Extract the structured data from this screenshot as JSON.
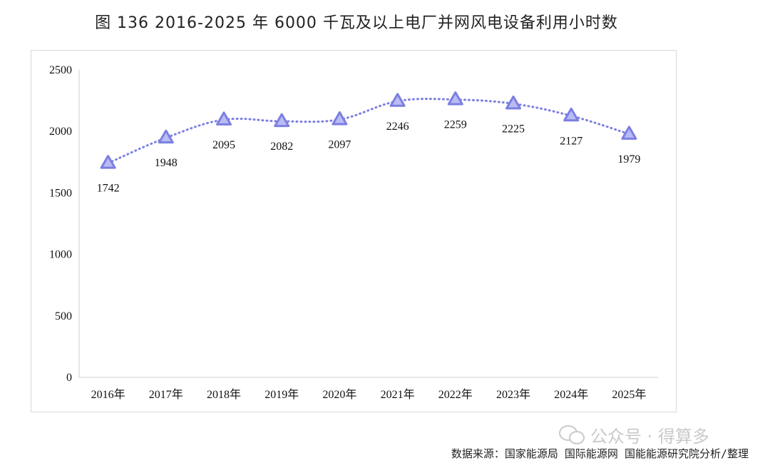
{
  "title": "图 136 2016-2025 年 6000 千瓦及以上电厂并网风电设备利用小时数",
  "source": "数据来源：国家能源局 国际能源网 国能能源研究院分析/整理",
  "watermark": {
    "text": "公众号 · 得算多",
    "icon": "wechat-icon"
  },
  "chart_data": {
    "type": "line",
    "title": "图 136 2016-2025 年 6000 千瓦及以上电厂并网风电设备利用小时数",
    "categories": [
      "2016年",
      "2017年",
      "2018年",
      "2019年",
      "2020年",
      "2021年",
      "2022年",
      "2023年",
      "2024年",
      "2025年"
    ],
    "series": [
      {
        "values": [
          1742,
          1948,
          2095,
          2082,
          2097,
          2246,
          2259,
          2225,
          2127,
          1979
        ],
        "color": "#7b7fe0",
        "marker": "triangle",
        "line_style": "dotted"
      }
    ],
    "data_labels": [
      "1742",
      "1948",
      "2095",
      "2082",
      "2097",
      "2246",
      "2259",
      "2225",
      "2127",
      "1979"
    ],
    "y_ticks": [
      "0",
      "500",
      "1000",
      "1500",
      "2000",
      "2500"
    ],
    "ylim": [
      0,
      2500
    ],
    "grid": false,
    "legend": "none"
  }
}
